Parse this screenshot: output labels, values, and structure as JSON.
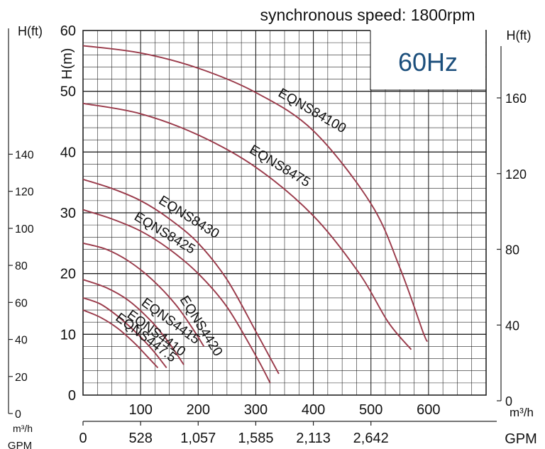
{
  "chart_data": {
    "type": "line",
    "title": "synchronous speed: 1800rpm",
    "badge": "60Hz",
    "ylabel": "H(m)",
    "ylabel_ft": "H(ft)",
    "xunit_primary": "m³/h",
    "xunit_gpm": "GPM",
    "xlim": [
      0,
      700
    ],
    "ylim": [
      0,
      60
    ],
    "grid": true,
    "y_ticks": [
      0,
      10,
      20,
      30,
      40,
      50,
      60
    ],
    "x_ticks": [
      100,
      200,
      300,
      400,
      500,
      600
    ],
    "gpm_ticks": [
      "0",
      "528",
      "1,057",
      "1,585",
      "2,113",
      "2,642"
    ],
    "ft_left_ticks": [
      0,
      20,
      40,
      60,
      80,
      100,
      120,
      140
    ],
    "ft_right_ticks": [
      0,
      40,
      80,
      120,
      160
    ],
    "colors": {
      "curve": "#9a3a4a",
      "grid": "#222222",
      "badge_text": "#1c4f7c"
    },
    "series": [
      {
        "name": "EQNS84100",
        "points": [
          [
            0,
            57.5
          ],
          [
            100,
            56.3
          ],
          [
            200,
            53.8
          ],
          [
            300,
            49.8
          ],
          [
            400,
            43.5
          ],
          [
            500,
            31.5
          ],
          [
            550,
            21
          ],
          [
            590,
            10.5
          ],
          [
            598,
            8.8
          ]
        ]
      },
      {
        "name": "EQNS8475",
        "points": [
          [
            0,
            48
          ],
          [
            100,
            46.3
          ],
          [
            200,
            42.8
          ],
          [
            300,
            37.5
          ],
          [
            400,
            29.5
          ],
          [
            480,
            20
          ],
          [
            530,
            12
          ],
          [
            570,
            7.5
          ]
        ]
      },
      {
        "name": "EQNS8430",
        "points": [
          [
            0,
            35.5
          ],
          [
            50,
            34
          ],
          [
            100,
            32
          ],
          [
            150,
            29
          ],
          [
            200,
            25
          ],
          [
            250,
            19
          ],
          [
            300,
            10.5
          ],
          [
            340,
            3.5
          ]
        ]
      },
      {
        "name": "EQNS8425",
        "points": [
          [
            0,
            30.5
          ],
          [
            50,
            29
          ],
          [
            100,
            27
          ],
          [
            150,
            24
          ],
          [
            200,
            20
          ],
          [
            250,
            14.5
          ],
          [
            300,
            6.5
          ],
          [
            325,
            2
          ]
        ]
      },
      {
        "name": "EQNS4420",
        "points": [
          [
            0,
            25
          ],
          [
            40,
            24
          ],
          [
            80,
            22
          ],
          [
            120,
            19
          ],
          [
            160,
            15
          ],
          [
            190,
            11
          ],
          [
            210,
            8
          ]
        ]
      },
      {
        "name": "EQNS4415",
        "points": [
          [
            0,
            19
          ],
          [
            40,
            17.7
          ],
          [
            80,
            15.5
          ],
          [
            120,
            12
          ],
          [
            150,
            8.5
          ],
          [
            175,
            5
          ]
        ]
      },
      {
        "name": "EQNS4410",
        "points": [
          [
            0,
            16
          ],
          [
            30,
            15
          ],
          [
            60,
            13
          ],
          [
            90,
            10.5
          ],
          [
            120,
            7.5
          ],
          [
            145,
            4.5
          ]
        ]
      },
      {
        "name": "EQNS447.5",
        "points": [
          [
            0,
            14
          ],
          [
            30,
            12.8
          ],
          [
            60,
            11
          ],
          [
            90,
            8.5
          ],
          [
            110,
            6.5
          ],
          [
            130,
            4.5
          ]
        ]
      }
    ]
  }
}
